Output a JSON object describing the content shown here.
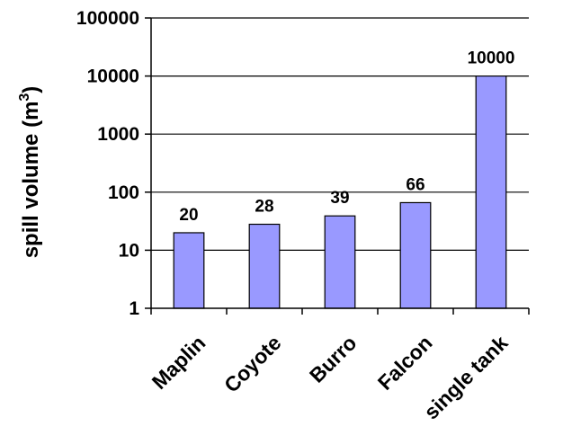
{
  "chart_data": {
    "type": "bar",
    "categories": [
      "Maplin",
      "Coyote",
      "Burro",
      "Falcon",
      "single tank"
    ],
    "values": [
      20,
      28,
      39,
      66,
      10000
    ],
    "data_labels": [
      "20",
      "28",
      "39",
      "66",
      "10000"
    ],
    "ylabel": "spill volume (m",
    "ylabel_sup": "3",
    "ylabel_close": ")",
    "yscale": "log",
    "ylim": [
      1,
      100000
    ],
    "yticks": [
      1,
      10,
      100,
      1000,
      10000,
      100000
    ],
    "ytick_labels": [
      "1",
      "10",
      "100",
      "1000",
      "10000",
      "100000"
    ],
    "grid": true,
    "bar_color": "#9999ff",
    "bar_edge_color": "#000000"
  }
}
